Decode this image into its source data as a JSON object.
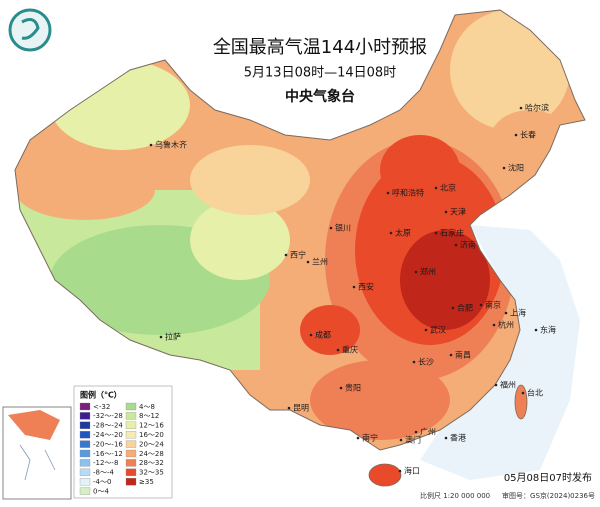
{
  "header": {
    "title": "全国最高气温144小时预报",
    "subtitle": "5月13日08时—14日08时",
    "issuer": "中央气象台"
  },
  "cities": [
    "乌鲁木齐",
    "哈尔滨",
    "长春",
    "沈阳",
    "呼和浩特",
    "北京",
    "天津",
    "银川",
    "太原",
    "石家庄",
    "济南",
    "西宁",
    "兰州",
    "郑州",
    "西安",
    "南京",
    "合肥",
    "上海",
    "杭州",
    "成都",
    "武汉",
    "重庆",
    "南昌",
    "长沙",
    "拉萨",
    "贵阳",
    "福州",
    "台北",
    "昆明",
    "南宁",
    "广州",
    "澳门",
    "香港",
    "海口",
    "东海"
  ],
  "legend": {
    "title": "图例（℃）",
    "items": [
      {
        "label": "<-32",
        "color": "#7a1f7a"
      },
      {
        "label": "-32～-28",
        "color": "#3b1f8f"
      },
      {
        "label": "-28～-24",
        "color": "#1f3b9b"
      },
      {
        "label": "-24～-20",
        "color": "#2255c4"
      },
      {
        "label": "-20～-16",
        "color": "#3a78d0"
      },
      {
        "label": "-16～-12",
        "color": "#5a9be0"
      },
      {
        "label": "-12～-8",
        "color": "#8cc0ee"
      },
      {
        "label": "-8～-4",
        "color": "#b6dcf5"
      },
      {
        "label": "-4～0",
        "color": "#e2f2f9"
      },
      {
        "label": "0～4",
        "color": "#d4efc4"
      },
      {
        "label": "4～8",
        "color": "#a8dc8c"
      },
      {
        "label": "8～12",
        "color": "#c8e89c"
      },
      {
        "label": "12～16",
        "color": "#e6f0a8"
      },
      {
        "label": "16～20",
        "color": "#f5eab4"
      },
      {
        "label": "20～24",
        "color": "#f8d49a"
      },
      {
        "label": "24～28",
        "color": "#f5ad78"
      },
      {
        "label": "28～32",
        "color": "#ef7f55"
      },
      {
        "label": "32～35",
        "color": "#e84a2a"
      },
      {
        "label": "≥35",
        "color": "#c0261a"
      }
    ]
  },
  "footer": {
    "issued": "05月08日07时发布",
    "scale": "比例尺 1:20 000 000",
    "approval": "审图号：GS京(2024)0236号"
  }
}
